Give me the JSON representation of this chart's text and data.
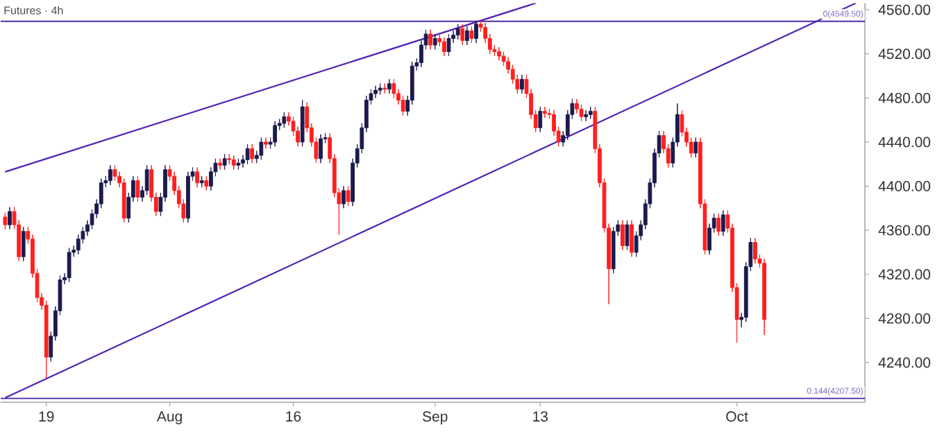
{
  "chart_data": {
    "type": "candlestick",
    "title": "Futures · 4h",
    "categories": [
      null,
      null,
      null,
      null,
      null,
      null,
      null,
      null,
      null,
      "19",
      null,
      null,
      null,
      null,
      null,
      null,
      null,
      null,
      null,
      null,
      null,
      null,
      null,
      null,
      null,
      null,
      null,
      null,
      null,
      null,
      null,
      null,
      null,
      null,
      null,
      null,
      "Aug",
      null,
      null,
      null,
      null,
      null,
      null,
      null,
      null,
      null,
      null,
      null,
      null,
      null,
      null,
      null,
      null,
      null,
      null,
      null,
      null,
      null,
      null,
      null,
      null,
      null,
      null,
      "16",
      null,
      null,
      null,
      null,
      null,
      null,
      null,
      null,
      null,
      null,
      null,
      null,
      null,
      null,
      null,
      null,
      null,
      null,
      null,
      null,
      null,
      null,
      null,
      null,
      null,
      null,
      null,
      null,
      null,
      null,
      "Sep",
      null,
      null,
      null,
      null,
      null,
      null,
      null,
      null,
      null,
      null,
      null,
      null,
      null,
      null,
      null,
      null,
      null,
      null,
      null,
      null,
      null,
      null,
      "13",
      null,
      null,
      null,
      null,
      null,
      null,
      null,
      null,
      null,
      null,
      null,
      null,
      null,
      null,
      null,
      null,
      null,
      null,
      null,
      null,
      null,
      null,
      null,
      null,
      null,
      null,
      null,
      null,
      null,
      null,
      null,
      null,
      null,
      null,
      null,
      null,
      null,
      null,
      null,
      null,
      null,
      null,
      "Oct",
      null,
      null,
      null,
      null,
      null,
      null,
      null,
      null,
      null,
      null,
      null,
      null,
      null,
      null,
      null,
      null,
      null,
      null,
      null,
      null,
      null,
      null,
      null,
      null,
      null,
      null
    ],
    "ohlc": [
      [
        4372,
        4376,
        4361,
        4365
      ],
      [
        4365,
        4381,
        4361,
        4377
      ],
      [
        4377,
        4381,
        4361,
        4365
      ],
      [
        4365,
        4369,
        4332,
        4336
      ],
      [
        4336,
        4363,
        4332,
        4359
      ],
      [
        4359,
        4363,
        4348,
        4352
      ],
      [
        4352,
        4356,
        4317,
        4321
      ],
      [
        4321,
        4325,
        4295,
        4299
      ],
      [
        4299,
        4303,
        4288,
        4292
      ],
      [
        4292,
        4296,
        4226,
        4245
      ],
      [
        4245,
        4268,
        4241,
        4264
      ],
      [
        4264,
        4291,
        4260,
        4287
      ],
      [
        4287,
        4319,
        4283,
        4315
      ],
      [
        4315,
        4321,
        4311,
        4317
      ],
      [
        4317,
        4344,
        4313,
        4340
      ],
      [
        4340,
        4346,
        4336,
        4342
      ],
      [
        4342,
        4356,
        4338,
        4352
      ],
      [
        4352,
        4363,
        4348,
        4359
      ],
      [
        4359,
        4369,
        4355,
        4365
      ],
      [
        4365,
        4379,
        4361,
        4375
      ],
      [
        4375,
        4388,
        4371,
        4384
      ],
      [
        4384,
        4407,
        4380,
        4403
      ],
      [
        4403,
        4409,
        4399,
        4405
      ],
      [
        4405,
        4419,
        4401,
        4415
      ],
      [
        4415,
        4419,
        4405,
        4409
      ],
      [
        4409,
        4413,
        4399,
        4403
      ],
      [
        4403,
        4407,
        4367,
        4371
      ],
      [
        4371,
        4394,
        4367,
        4390
      ],
      [
        4390,
        4409,
        4386,
        4405
      ],
      [
        4405,
        4409,
        4386,
        4390
      ],
      [
        4390,
        4400,
        4386,
        4396
      ],
      [
        4396,
        4419,
        4392,
        4415
      ],
      [
        4415,
        4419,
        4386,
        4390
      ],
      [
        4390,
        4394,
        4373,
        4377
      ],
      [
        4377,
        4394,
        4373,
        4390
      ],
      [
        4390,
        4419,
        4386,
        4415
      ],
      [
        4415,
        4419,
        4405,
        4409
      ],
      [
        4409,
        4413,
        4392,
        4396
      ],
      [
        4396,
        4400,
        4380,
        4384
      ],
      [
        4384,
        4388,
        4367,
        4371
      ],
      [
        4371,
        4413,
        4367,
        4409
      ],
      [
        4409,
        4417,
        4405,
        4413
      ],
      [
        4413,
        4417,
        4399,
        4403
      ],
      [
        4403,
        4409,
        4399,
        4405
      ],
      [
        4405,
        4409,
        4396,
        4400
      ],
      [
        4400,
        4417,
        4396,
        4413
      ],
      [
        4413,
        4425,
        4409,
        4421
      ],
      [
        4421,
        4425,
        4415,
        4419
      ],
      [
        4419,
        4429,
        4415,
        4425
      ],
      [
        4425,
        4429,
        4420,
        4424
      ],
      [
        4424,
        4428,
        4415,
        4419
      ],
      [
        4419,
        4425,
        4415,
        4421
      ],
      [
        4421,
        4428,
        4417,
        4424
      ],
      [
        4424,
        4438,
        4420,
        4434
      ],
      [
        4434,
        4438,
        4421,
        4425
      ],
      [
        4425,
        4432,
        4421,
        4428
      ],
      [
        4428,
        4444,
        4424,
        4440
      ],
      [
        4440,
        4444,
        4434,
        4438
      ],
      [
        4438,
        4444,
        4434,
        4440
      ],
      [
        4440,
        4459,
        4436,
        4455
      ],
      [
        4455,
        4461,
        4451,
        4457
      ],
      [
        4457,
        4467,
        4453,
        4463
      ],
      [
        4463,
        4467,
        4455,
        4459
      ],
      [
        4459,
        4463,
        4446,
        4450
      ],
      [
        4450,
        4454,
        4436,
        4440
      ],
      [
        4440,
        4478,
        4436,
        4472
      ],
      [
        4472,
        4476,
        4449,
        4453
      ],
      [
        4453,
        4457,
        4436,
        4440
      ],
      [
        4440,
        4444,
        4421,
        4425
      ],
      [
        4425,
        4447,
        4421,
        4443
      ],
      [
        4443,
        4448,
        4439,
        4444
      ],
      [
        4444,
        4448,
        4421,
        4425
      ],
      [
        4425,
        4429,
        4390,
        4394
      ],
      [
        4394,
        4398,
        4356,
        4384
      ],
      [
        4384,
        4400,
        4380,
        4396
      ],
      [
        4396,
        4400,
        4382,
        4386
      ],
      [
        4386,
        4425,
        4382,
        4421
      ],
      [
        4421,
        4438,
        4417,
        4434
      ],
      [
        4434,
        4457,
        4430,
        4453
      ],
      [
        4453,
        4482,
        4449,
        4478
      ],
      [
        4478,
        4488,
        4474,
        4484
      ],
      [
        4484,
        4491,
        4480,
        4487
      ],
      [
        4487,
        4493,
        4483,
        4489
      ],
      [
        4489,
        4493,
        4484,
        4488
      ],
      [
        4488,
        4497,
        4484,
        4493
      ],
      [
        4493,
        4497,
        4480,
        4484
      ],
      [
        4484,
        4488,
        4474,
        4478
      ],
      [
        4478,
        4482,
        4464,
        4468
      ],
      [
        4468,
        4482,
        4464,
        4478
      ],
      [
        4478,
        4513,
        4474,
        4509
      ],
      [
        4509,
        4516,
        4505,
        4512
      ],
      [
        4512,
        4532,
        4508,
        4528
      ],
      [
        4528,
        4542,
        4524,
        4538
      ],
      [
        4538,
        4542,
        4524,
        4528
      ],
      [
        4528,
        4538,
        4524,
        4534
      ],
      [
        4534,
        4538,
        4527,
        4531
      ],
      [
        4531,
        4535,
        4518,
        4522
      ],
      [
        4522,
        4538,
        4518,
        4534
      ],
      [
        4534,
        4541,
        4530,
        4537
      ],
      [
        4537,
        4547,
        4533,
        4543
      ],
      [
        4543,
        4547,
        4528,
        4532
      ],
      [
        4532,
        4545,
        4528,
        4541
      ],
      [
        4541,
        4545,
        4530,
        4534
      ],
      [
        4534,
        4550,
        4530,
        4547
      ],
      [
        4547,
        4550,
        4540,
        4544
      ],
      [
        4544,
        4548,
        4530,
        4534
      ],
      [
        4534,
        4538,
        4520,
        4524
      ],
      [
        4524,
        4528,
        4518,
        4522
      ],
      [
        4522,
        4526,
        4514,
        4518
      ],
      [
        4518,
        4522,
        4509,
        4513
      ],
      [
        4513,
        4517,
        4502,
        4506
      ],
      [
        4506,
        4510,
        4493,
        4497
      ],
      [
        4497,
        4501,
        4484,
        4488
      ],
      [
        4488,
        4501,
        4484,
        4497
      ],
      [
        4497,
        4501,
        4480,
        4484
      ],
      [
        4484,
        4488,
        4461,
        4465
      ],
      [
        4465,
        4469,
        4449,
        4453
      ],
      [
        4453,
        4472,
        4449,
        4468
      ],
      [
        4468,
        4472,
        4462,
        4466
      ],
      [
        4466,
        4470,
        4461,
        4465
      ],
      [
        4465,
        4469,
        4446,
        4450
      ],
      [
        4450,
        4454,
        4436,
        4440
      ],
      [
        4440,
        4450,
        4436,
        4446
      ],
      [
        4446,
        4469,
        4442,
        4465
      ],
      [
        4465,
        4479,
        4461,
        4475
      ],
      [
        4475,
        4479,
        4466,
        4470
      ],
      [
        4470,
        4474,
        4459,
        4463
      ],
      [
        4463,
        4469,
        4459,
        4465
      ],
      [
        4465,
        4472,
        4461,
        4468
      ],
      [
        4468,
        4472,
        4430,
        4434
      ],
      [
        4434,
        4438,
        4399,
        4403
      ],
      [
        4403,
        4407,
        4358,
        4362
      ],
      [
        4362,
        4366,
        4293,
        4325
      ],
      [
        4325,
        4363,
        4321,
        4359
      ],
      [
        4359,
        4369,
        4355,
        4365
      ],
      [
        4365,
        4369,
        4342,
        4346
      ],
      [
        4346,
        4369,
        4342,
        4365
      ],
      [
        4365,
        4369,
        4336,
        4340
      ],
      [
        4340,
        4359,
        4336,
        4355
      ],
      [
        4355,
        4369,
        4351,
        4365
      ],
      [
        4365,
        4388,
        4361,
        4384
      ],
      [
        4384,
        4407,
        4380,
        4403
      ],
      [
        4403,
        4434,
        4399,
        4430
      ],
      [
        4430,
        4450,
        4426,
        4446
      ],
      [
        4446,
        4450,
        4430,
        4434
      ],
      [
        4434,
        4438,
        4417,
        4421
      ],
      [
        4421,
        4444,
        4417,
        4440
      ],
      [
        4440,
        4475,
        4436,
        4465
      ],
      [
        4465,
        4469,
        4445,
        4449
      ],
      [
        4449,
        4453,
        4436,
        4440
      ],
      [
        4440,
        4444,
        4426,
        4430
      ],
      [
        4430,
        4444,
        4426,
        4440
      ],
      [
        4440,
        4444,
        4380,
        4384
      ],
      [
        4384,
        4388,
        4338,
        4342
      ],
      [
        4342,
        4366,
        4338,
        4362
      ],
      [
        4362,
        4375,
        4358,
        4371
      ],
      [
        4371,
        4375,
        4355,
        4359
      ],
      [
        4359,
        4378,
        4355,
        4374
      ],
      [
        4374,
        4378,
        4358,
        4362
      ],
      [
        4362,
        4366,
        4304,
        4308
      ],
      [
        4308,
        4312,
        4258,
        4279
      ],
      [
        4279,
        4285,
        4272,
        4281
      ],
      [
        4281,
        4331,
        4277,
        4327
      ],
      [
        4327,
        4353,
        4323,
        4349
      ],
      [
        4349,
        4353,
        4330,
        4334
      ],
      [
        4334,
        4338,
        4326,
        4330
      ],
      [
        4330,
        4334,
        4265,
        4279
      ],
      null,
      null,
      null,
      null,
      null,
      null,
      null,
      null,
      null,
      null,
      null,
      null,
      null,
      null,
      null,
      null,
      null,
      null,
      null,
      null
    ],
    "series": [
      {
        "type": "line",
        "color": "#5022b5",
        "values": [
          4413,
          null,
          null,
          null,
          null,
          null,
          null,
          null,
          null,
          null,
          null,
          null,
          null,
          null,
          null,
          null,
          null,
          null,
          null,
          null,
          null,
          null,
          null,
          null,
          null,
          null,
          null,
          null,
          null,
          null,
          null,
          null,
          null,
          null,
          null,
          null,
          null,
          null,
          null,
          null,
          null,
          null,
          null,
          null,
          null,
          null,
          null,
          null,
          null,
          null,
          null,
          null,
          null,
          null,
          null,
          null,
          null,
          null,
          null,
          null,
          null,
          null,
          null,
          null,
          null,
          null,
          null,
          null,
          null,
          null,
          null,
          null,
          null,
          null,
          null,
          null,
          null,
          null,
          null,
          null,
          null,
          null,
          null,
          null,
          null,
          null,
          null,
          null,
          null,
          null,
          null,
          null,
          null,
          null,
          null,
          null,
          null,
          null,
          null,
          null,
          null,
          null,
          null,
          null,
          null,
          null,
          null,
          null,
          null,
          null,
          null,
          null,
          null,
          null,
          null,
          null,
          4566,
          null,
          null,
          null,
          null,
          null,
          null,
          null,
          null,
          null,
          null,
          null,
          null,
          null,
          null,
          null,
          null,
          null,
          null,
          null,
          null,
          null,
          null,
          null,
          null,
          null,
          null,
          null,
          null,
          null,
          null,
          null,
          null,
          null,
          null,
          null,
          null,
          null,
          null,
          null,
          null,
          null,
          null,
          null,
          null,
          null,
          null,
          null,
          null,
          null,
          null,
          null,
          null,
          null,
          null,
          null,
          null,
          null,
          null,
          null,
          null,
          null,
          null,
          null,
          null,
          null,
          null,
          null,
          null,
          null,
          null
        ]
      },
      {
        "type": "line",
        "color": "#5022b5",
        "values": [
          4208,
          null,
          null,
          null,
          null,
          null,
          null,
          null,
          null,
          null,
          null,
          null,
          null,
          null,
          null,
          null,
          null,
          null,
          null,
          null,
          null,
          null,
          null,
          null,
          null,
          null,
          null,
          null,
          null,
          null,
          null,
          null,
          null,
          null,
          null,
          null,
          null,
          null,
          null,
          null,
          null,
          null,
          null,
          null,
          null,
          null,
          null,
          null,
          null,
          null,
          null,
          null,
          null,
          null,
          null,
          null,
          null,
          null,
          null,
          null,
          null,
          null,
          null,
          null,
          null,
          null,
          null,
          null,
          null,
          null,
          null,
          null,
          null,
          null,
          null,
          null,
          null,
          null,
          null,
          null,
          null,
          null,
          null,
          null,
          null,
          null,
          null,
          null,
          null,
          null,
          null,
          null,
          null,
          null,
          null,
          null,
          null,
          null,
          null,
          null,
          null,
          null,
          null,
          null,
          null,
          null,
          null,
          null,
          null,
          null,
          null,
          null,
          null,
          null,
          null,
          null,
          null,
          null,
          null,
          null,
          null,
          null,
          null,
          null,
          null,
          null,
          null,
          null,
          null,
          null,
          null,
          null,
          null,
          null,
          null,
          null,
          null,
          null,
          null,
          null,
          null,
          null,
          null,
          null,
          null,
          null,
          null,
          null,
          null,
          null,
          null,
          null,
          null,
          null,
          null,
          null,
          null,
          null,
          null,
          null,
          null,
          null,
          null,
          null,
          null,
          null,
          null,
          null,
          null,
          null,
          null,
          null,
          null,
          null,
          null,
          null,
          null,
          null,
          null,
          null,
          null,
          null,
          null,
          null,
          null,
          null,
          4566
        ]
      }
    ],
    "ylim": [
      4204,
      4566
    ],
    "yticks": [
      {
        "value": 4240,
        "label": "4240.00"
      },
      {
        "value": 4280,
        "label": "4280.00"
      },
      {
        "value": 4320,
        "label": "4320.00"
      },
      {
        "value": 4360,
        "label": "4360.00"
      },
      {
        "value": 4400,
        "label": "4400.00"
      },
      {
        "value": 4440,
        "label": "4440.00"
      },
      {
        "value": 4480,
        "label": "4480.00"
      },
      {
        "value": 4520,
        "label": "4520.00"
      },
      {
        "value": 4560,
        "label": "4560.00"
      }
    ],
    "ref_lines": [
      {
        "axis": "y",
        "value": 4549.5,
        "label": "0(4549.50)",
        "color": "#4a2aa8"
      },
      {
        "axis": "y",
        "value": 4207.5,
        "label": "0.144(4207.50)",
        "color": "#4a2aa8"
      }
    ]
  }
}
